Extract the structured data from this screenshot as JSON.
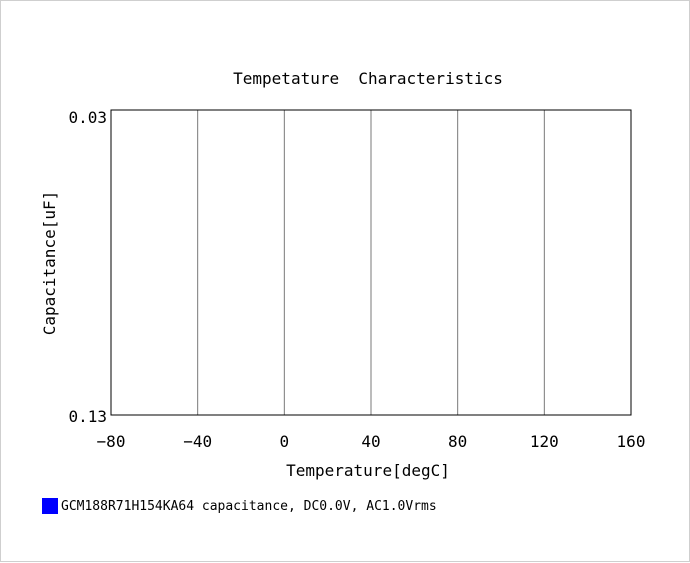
{
  "chart_data": {
    "type": "line",
    "title": "Tempetature  Characteristics",
    "xlabel": "Temperature[degC]",
    "ylabel": "Capacitance[uF]",
    "xlim": [
      -80,
      160
    ],
    "ylim": [
      0.13,
      0.03
    ],
    "x_ticks": [
      -80,
      -40,
      0,
      40,
      80,
      120,
      160
    ],
    "x_tick_labels": [
      "−80",
      "−40",
      "0",
      "40",
      "80",
      "120",
      "160"
    ],
    "y_tick_labels": [
      "0.03",
      "0.13"
    ],
    "grid": "vertical",
    "series": [
      {
        "name": "GCM188R71H154KA64 capacitance, DC0.0V, AC1.0Vrms",
        "color": "#0000ff",
        "x": [],
        "y": []
      }
    ],
    "legend_placement": "bottom-left"
  }
}
